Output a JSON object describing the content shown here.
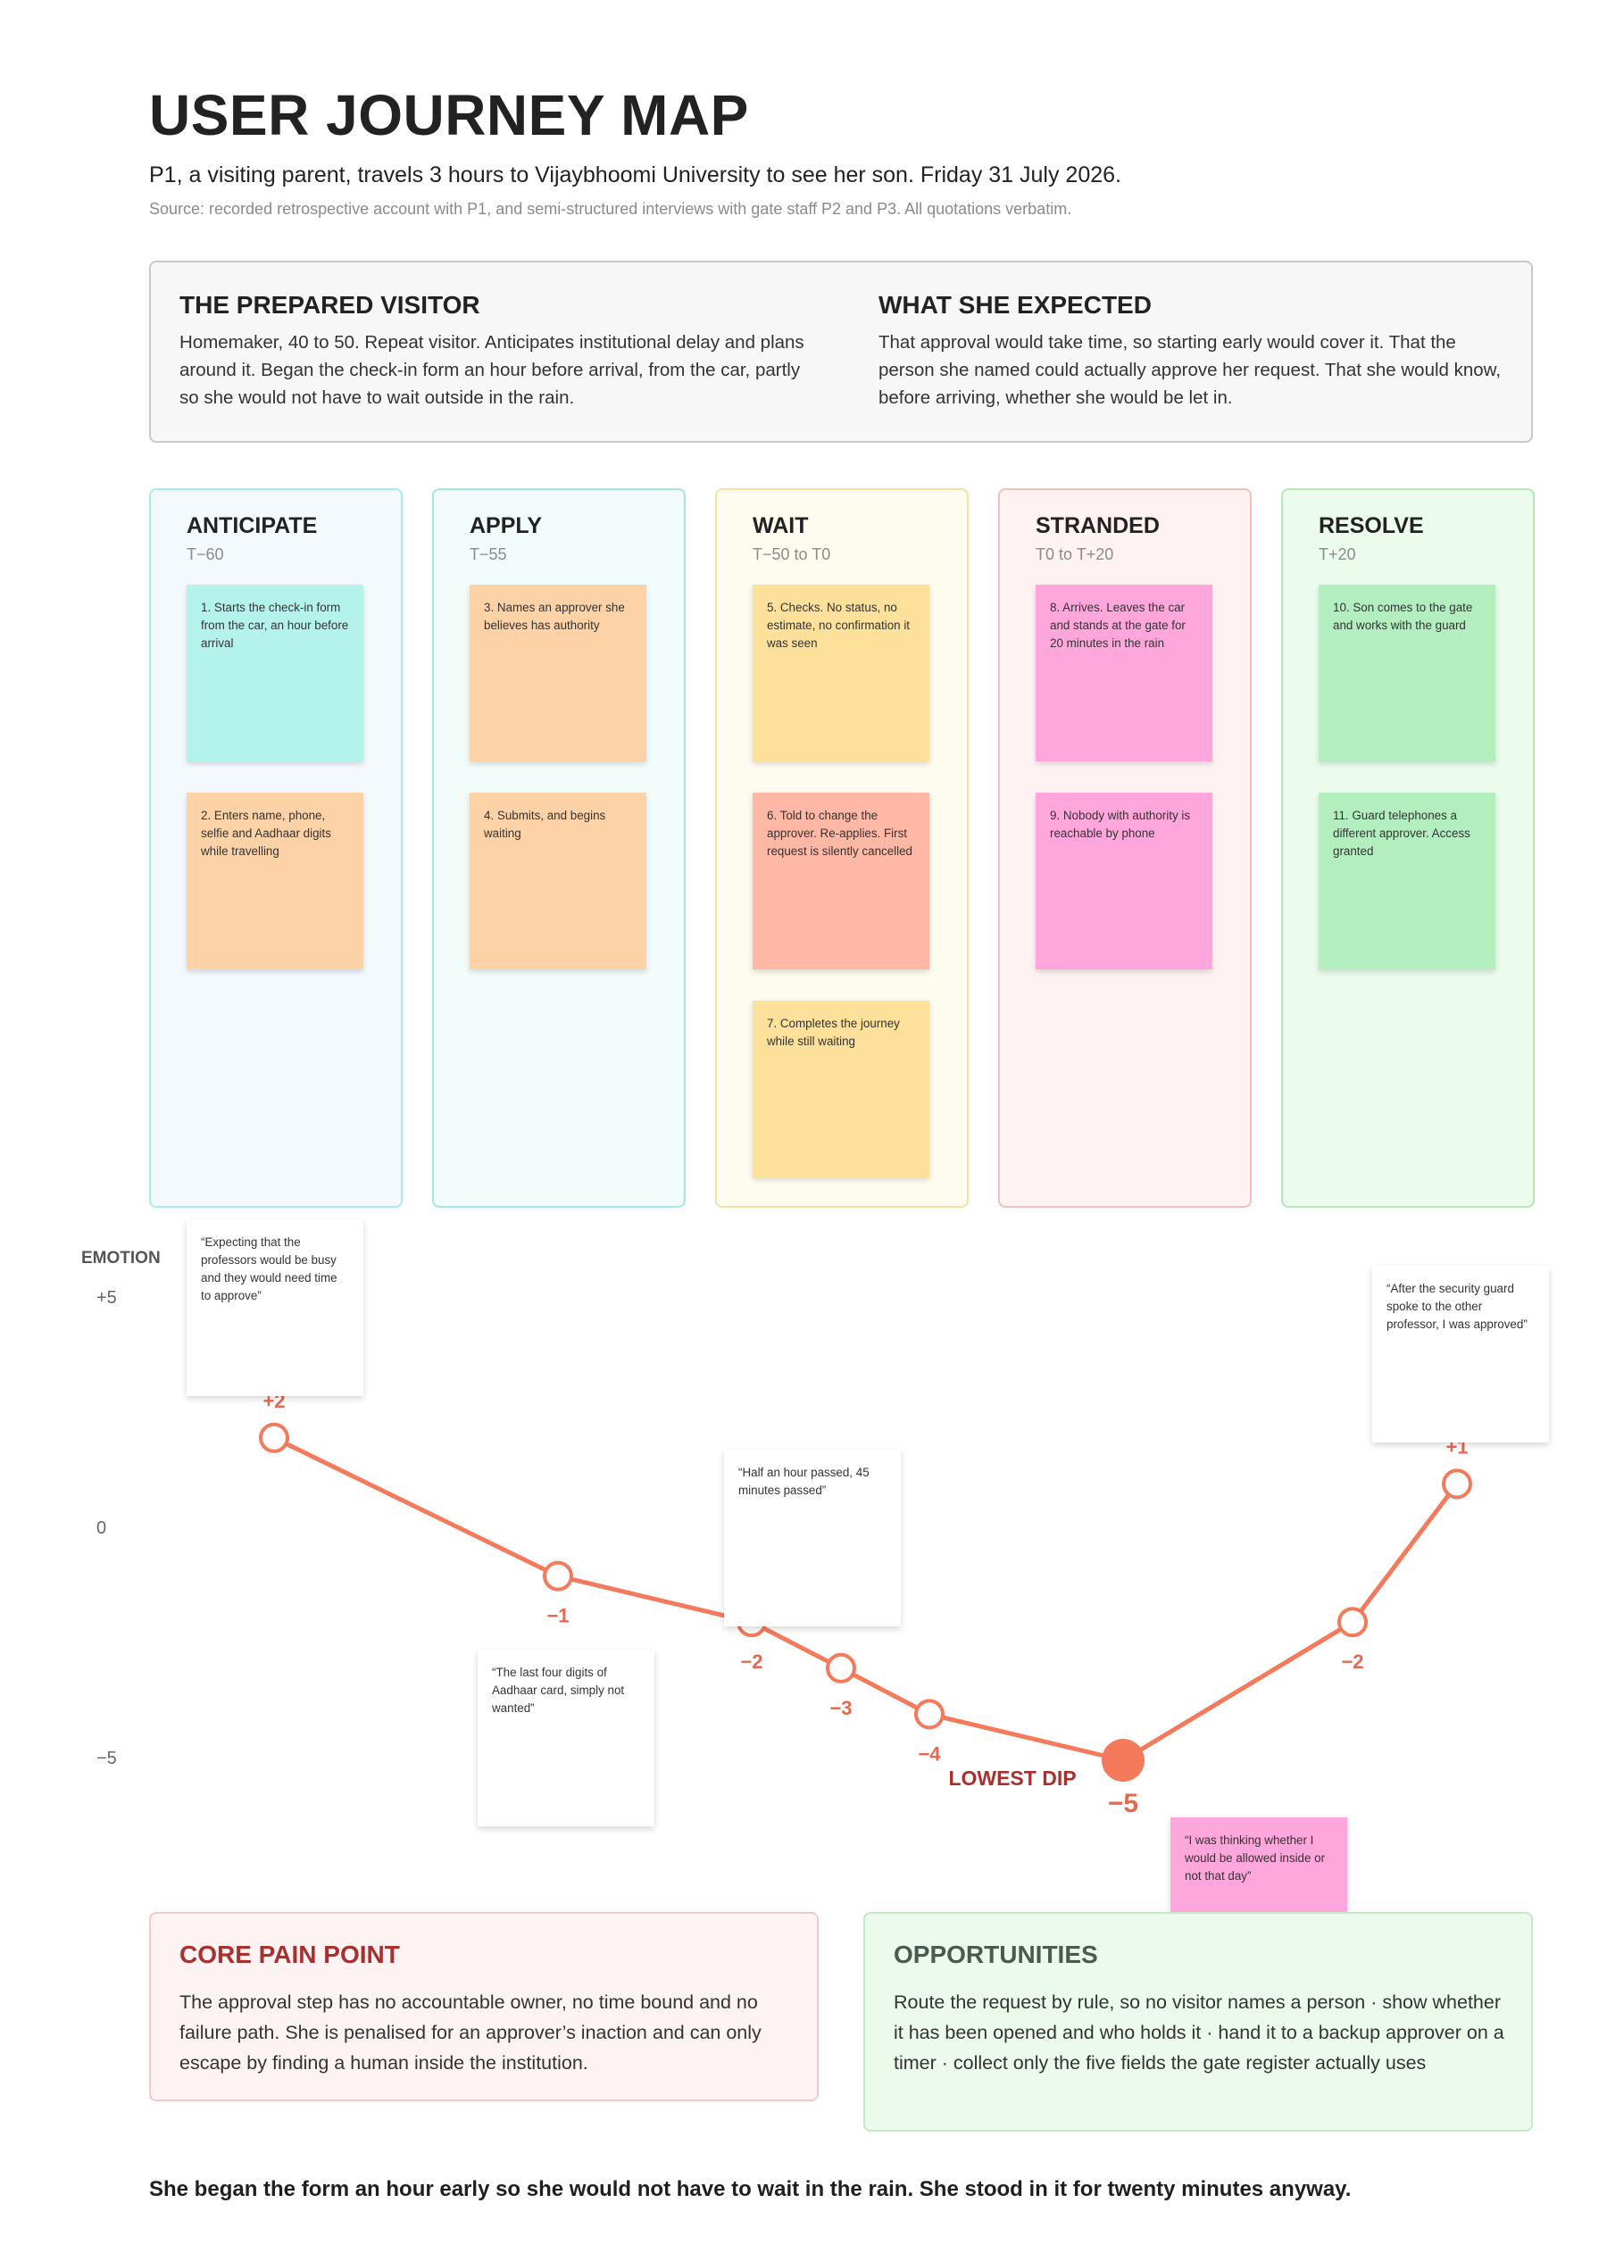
{
  "header": {
    "title": "USER JOURNEY MAP",
    "subtitle": "P1, a visiting parent, travels 3 hours to Vijaybhoomi University to see her son.  Friday 31 July 2026.",
    "source": "Source: recorded retrospective account with P1, and semi-structured interviews with gate staff P2 and P3. All quotations verbatim."
  },
  "persona": {
    "left_title": "THE PREPARED VISITOR",
    "left_text": "Homemaker, 40 to 50. Repeat visitor. Anticipates institutional delay and plans around it. Began the check-in form an hour before arrival, from the car, partly so she would not have to wait outside in the rain.",
    "right_title": "WHAT SHE EXPECTED",
    "right_text": "That approval would take time, so starting early would cover it. That the person she named could actually approve her request. That she would know, before arriving, whether she would be let in."
  },
  "stages": [
    {
      "name": "ANTICIPATE",
      "time": "T−60",
      "bg": "#f4f9fe",
      "border": "#a7ecea",
      "notes": [
        {
          "text": "1. Starts the check-in form from the car, an hour before arrival",
          "color": "#b4f3ec"
        },
        {
          "text": "2. Enters name, phone, selfie and Aadhaar digits while travelling",
          "color": "#fdd2a7"
        }
      ]
    },
    {
      "name": "APPLY",
      "time": "T−55",
      "bg": "#f2fcfb",
      "border": "#a3e9e2",
      "notes": [
        {
          "text": "3. Names an approver she believes has authority",
          "color": "#fdd2a7"
        },
        {
          "text": "4. Submits, and begins waiting",
          "color": "#fdd2a7"
        }
      ]
    },
    {
      "name": "WAIT",
      "time": "T−50 to T0",
      "bg": "#fefbef",
      "border": "#f5e0a8",
      "notes": [
        {
          "text": "5. Checks. No status, no estimate, no confirmation it was seen",
          "color": "#fde099"
        },
        {
          "text": "6. Told to change the approver. Re-applies. First request is silently cancelled",
          "color": "#feb8a5"
        },
        {
          "text": "7. Completes the journey while still waiting",
          "color": "#fde099"
        }
      ]
    },
    {
      "name": "STRANDED",
      "time": "T0 to T+20",
      "bg": "#fef2f2",
      "border": "#f3c0bd",
      "notes": [
        {
          "text": "8. Arrives. Leaves the car and stands at the gate for 20 minutes in the rain",
          "color": "#ffa6dc"
        },
        {
          "text": "9. Nobody with authority is reachable by phone",
          "color": "#ffa6dc"
        }
      ]
    },
    {
      "name": "RESOLVE",
      "time": "T+20",
      "bg": "#ebfbec",
      "border": "#b5eab8",
      "notes": [
        {
          "text": "10. Son comes to the gate and works with the guard",
          "color": "#b3efbe"
        },
        {
          "text": "11. Guard telephones a different approver. Access granted",
          "color": "#b3efbe"
        }
      ]
    }
  ],
  "emotion": {
    "axis_title": "EMOTION",
    "ticks": [
      "+5",
      "0",
      "−5"
    ],
    "line_color": "#f47a5b",
    "label_color": "#e8684f",
    "points": [
      {
        "value": 2,
        "label": "+2"
      },
      {
        "value": -1,
        "label": "−1"
      },
      {
        "value": -2,
        "label": "−2"
      },
      {
        "value": -3,
        "label": "−3"
      },
      {
        "value": -4,
        "label": "−4"
      },
      {
        "value": -5,
        "label": "−5"
      },
      {
        "value": -2,
        "label": "−2"
      },
      {
        "value": 1,
        "label": "+1"
      }
    ],
    "lowest_label": "LOWEST DIP",
    "quotes": [
      "“Expecting that the professors would be busy and they would need time to approve”",
      "“The last four digits of Aadhaar card, simply not wanted”",
      "“Half an hour passed, 45 minutes passed”",
      "“I was thinking whether I would be allowed inside or not that day”",
      "“After the security guard spoke to the other professor, I was approved”"
    ]
  },
  "pain": {
    "title": "CORE PAIN POINT",
    "text": "The approval step has no accountable owner, no time bound and no failure path. She is penalised for an approver’s inaction and can only escape by finding a human inside the institution."
  },
  "opportunities": {
    "title": "OPPORTUNITIES",
    "text": "Route the request by rule, so no visitor names a person  ·  show whether it has been opened and who holds it  ·  hand it to a backup approver on a timer  ·  collect only the five fields the gate register actually uses"
  },
  "closing": "She began the form an hour early so she would not have to wait in the rain. She stood in it for twenty minutes anyway."
}
